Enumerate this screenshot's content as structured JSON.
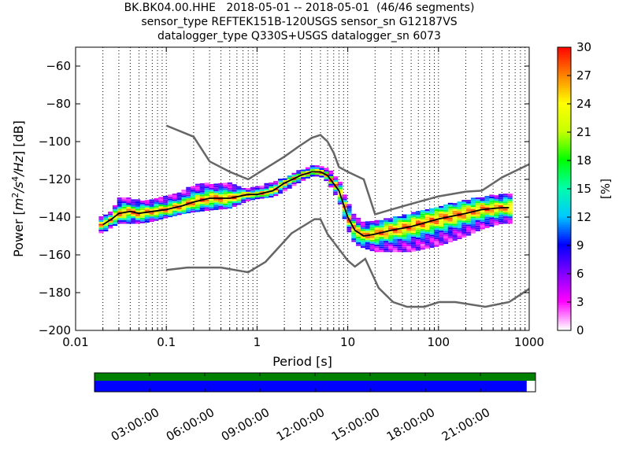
{
  "title_lines": [
    "BK.BK04.00.HHE   2018-05-01 -- 2018-05-01  (46/46 segments)",
    "sensor_type REFTEK151B-120USGS sensor_sn G12187VS",
    "datalogger_type Q330S+USGS datalogger_sn 6073"
  ],
  "chart_data": {
    "type": "heatmap",
    "title": "BK.BK04.00.HHE   2018-05-01 -- 2018-05-01  (46/46 segments)",
    "xlabel": "Period [s]",
    "ylabel": "Power [m²/s⁴/Hz] [dB]",
    "ylabel_parts": {
      "prefix": "Power [",
      "base": "m",
      "e1": "2",
      "mid": "/s",
      "e2": "4",
      "tail": "/Hz",
      "suffix": "] [dB]"
    },
    "xscale": "log",
    "xlim": [
      0.01,
      1000
    ],
    "ylim": [
      -200,
      -50
    ],
    "x_ticks": [
      0.01,
      0.1,
      1,
      10,
      100,
      1000
    ],
    "x_tick_labels": [
      "0.01",
      "0.1",
      "1",
      "10",
      "100",
      "1000"
    ],
    "y_ticks": [
      -200,
      -180,
      -160,
      -140,
      -120,
      -100,
      -80,
      -60
    ],
    "y_tick_labels": [
      "−200",
      "−180",
      "−160",
      "−140",
      "−120",
      "−100",
      "−80",
      "−60"
    ],
    "grid": "dotted, vertical at log minor decades",
    "colorbar": {
      "label": "[%]",
      "range": [
        0,
        30
      ],
      "ticks": [
        0,
        3,
        6,
        9,
        12,
        15,
        18,
        21,
        24,
        27,
        30
      ],
      "colormap": [
        "#ffffff",
        "#ff00ff",
        "#8000ff",
        "#0000ff",
        "#00c8ff",
        "#00ffaa",
        "#00ff00",
        "#c8ff00",
        "#ffff00",
        "#ff8000",
        "#ff0000"
      ]
    },
    "median_curve": {
      "name": "",
      "color": "#000000",
      "x": [
        0.02,
        0.025,
        0.03,
        0.04,
        0.05,
        0.07,
        0.1,
        0.15,
        0.2,
        0.3,
        0.5,
        0.8,
        1,
        1.5,
        2,
        3,
        4,
        5,
        6,
        8,
        10,
        12,
        15,
        20,
        30,
        50,
        100,
        200,
        300,
        500,
        600
      ],
      "y": [
        -144,
        -141,
        -138,
        -137,
        -138,
        -137,
        -136,
        -134,
        -132,
        -130,
        -130,
        -128,
        -128,
        -126,
        -122,
        -118,
        -116,
        -116,
        -118,
        -126,
        -140,
        -147,
        -150,
        -149,
        -147,
        -145,
        -141,
        -138,
        -136,
        -135,
        -135
      ]
    },
    "noise_models": [
      {
        "name": "",
        "color": "#666666",
        "x": [
          0.1,
          0.2,
          0.3,
          0.5,
          0.8,
          1,
          2,
          3,
          4,
          5,
          6,
          7,
          8,
          10,
          15,
          20,
          30,
          50,
          100,
          200,
          300,
          500,
          1000
        ],
        "y": [
          -91.5,
          -97.4,
          -110.5,
          -116,
          -120,
          -117,
          -108,
          -102,
          -98,
          -96.5,
          -100,
          -106,
          -113.5,
          -116,
          -120,
          -138.5,
          -136,
          -133,
          -129,
          -126.5,
          -126,
          -119,
          -112
        ]
      },
      {
        "name": "",
        "color": "#666666",
        "x": [
          0.1,
          0.17,
          0.4,
          0.8,
          1.24,
          2.4,
          4.3,
          5,
          6,
          10,
          12,
          15.6,
          21.9,
          31.6,
          45,
          70,
          101,
          154,
          328,
          600,
          1000
        ],
        "y": [
          -168,
          -166.7,
          -166.7,
          -169.2,
          -163.7,
          -148.6,
          -141.1,
          -141.1,
          -149,
          -163,
          -166.2,
          -162.1,
          -177.5,
          -185,
          -187.5,
          -187.5,
          -185,
          -185,
          -187.5,
          -185,
          -178
        ]
      }
    ],
    "density_bands": [
      {
        "x": [
          0.02,
          0.025,
          0.03,
          0.04,
          0.05,
          0.07,
          0.1,
          0.15,
          0.2,
          0.3,
          0.5,
          0.8,
          1,
          1.5,
          2,
          3,
          4,
          5,
          6,
          8,
          10,
          12,
          15,
          20,
          30,
          50,
          100,
          200,
          300,
          500,
          600
        ],
        "lo": [
          -148,
          -145,
          -143,
          -143,
          -143,
          -142,
          -140,
          -138,
          -137,
          -136,
          -135,
          -131,
          -130,
          -129,
          -126,
          -121,
          -118,
          -118,
          -121,
          -131,
          -146,
          -154,
          -156,
          -158,
          -158,
          -158,
          -155,
          -150,
          -146,
          -143,
          -143
        ],
        "hi": [
          -140,
          -136,
          -130,
          -130,
          -131,
          -131,
          -129,
          -126,
          -123,
          -122,
          -122,
          -125,
          -124,
          -121,
          -119,
          -115,
          -113,
          -113,
          -114,
          -120,
          -132,
          -139,
          -143,
          -142,
          -140,
          -138,
          -134,
          -131,
          -129,
          -128,
          -128
        ]
      }
    ],
    "availability_bar": {
      "coverage_fraction": 0.98,
      "data_color": "#0000ff",
      "gap_color": "#008000",
      "time_tick_labels": [
        "03:00:00",
        "06:00:00",
        "09:00:00",
        "12:00:00",
        "15:00:00",
        "18:00:00",
        "21:00:00"
      ]
    }
  }
}
